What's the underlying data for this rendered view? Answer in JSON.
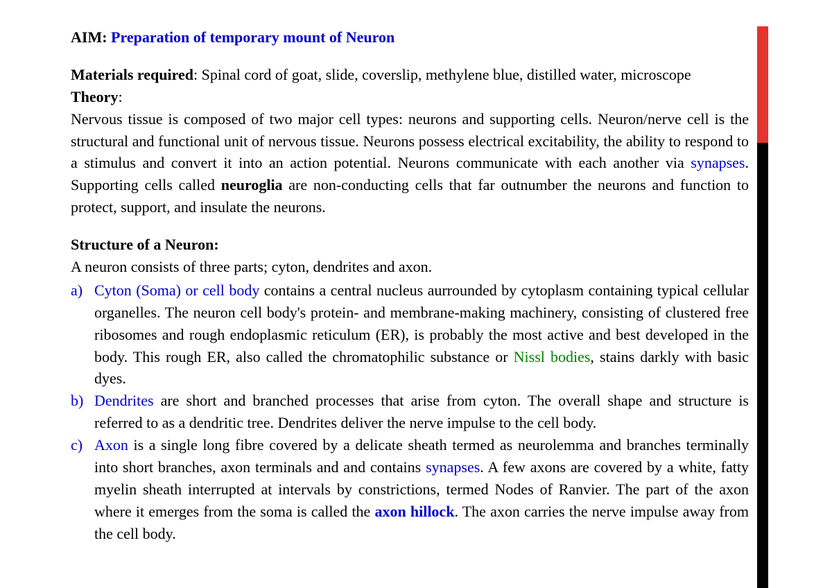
{
  "colors": {
    "text": "#000000",
    "blue_link": "#0000cd",
    "green_link": "#008000",
    "sidebar_top": "#e3342f",
    "sidebar_bottom": "#000000",
    "background": "#ffffff"
  },
  "typography": {
    "base_fontsize_pt": 16,
    "font_family": "Garamond / serif",
    "line_height": 1.45
  },
  "aim": {
    "label": "AIM: ",
    "title": "Preparation of temporary mount of Neuron"
  },
  "materials": {
    "label": "Materials required",
    "text": ": Spinal cord of goat, slide, coverslip, methylene blue, distilled water, microscope"
  },
  "theory": {
    "label": "Theory",
    "colon": ":",
    "body_before_synapses": "Nervous tissue is composed of two major cell types: neurons and supporting cells. Neuron/nerve cell is the structural and functional unit of nervous tissue. Neurons possess electrical excitability, the ability to respond to a stimulus and convert it into an action potential. Neurons communicate with each another via ",
    "synapses": "synapses",
    "body_mid": ". Supporting cells called ",
    "neuroglia": "neuroglia",
    "body_after": " are non-conducting cells that far outnumber the neurons and function to protect, support, and insulate the neurons."
  },
  "structure": {
    "heading": "Structure of a Neuron:",
    "intro": "A neuron consists of three parts; cyton, dendrites and axon.",
    "items": [
      {
        "letter": "a)",
        "lead": "Cyton (Soma) or cell body",
        "lead_color": "blue",
        "body_parts": [
          {
            "t": " contains a central nucleus aurrounded by cytoplasm containing typical cellular organelles. The neuron cell body's protein- and membrane-making machinery, consisting of clustered free ribosomes and rough endoplasmic reticulum (ER), is probably the most active and best developed in the body. This rough ER, also called the chromatophilic substance or "
          },
          {
            "t": "Nissl bodies",
            "color": "green"
          },
          {
            "t": ", stains darkly with basic dyes."
          }
        ]
      },
      {
        "letter": "b)",
        "lead": "Dendrites",
        "lead_color": "blue",
        "body_parts": [
          {
            "t": " are short and branched processes that arise from cyton. The overall shape and structure is referred to as a dendritic tree. Dendrites deliver the nerve impulse to the cell body."
          }
        ]
      },
      {
        "letter": "c)",
        "lead": "Axon",
        "lead_color": "blue",
        "body_parts": [
          {
            "t": " is a single long fibre covered by a delicate sheath termed as neurolemma and branches terminally into short branches, axon terminals and and contains "
          },
          {
            "t": "synapses",
            "color": "blue"
          },
          {
            "t": ". A few axons are covered by a white, fatty myelin sheath interrupted at intervals by constrictions, termed Nodes of Ranvier. The part of the axon where it emerges from the soma is called the "
          },
          {
            "t": "axon hillock",
            "color": "blue",
            "bold": true
          },
          {
            "t": ". The axon carries the nerve impulse away from the cell body."
          }
        ]
      }
    ]
  }
}
